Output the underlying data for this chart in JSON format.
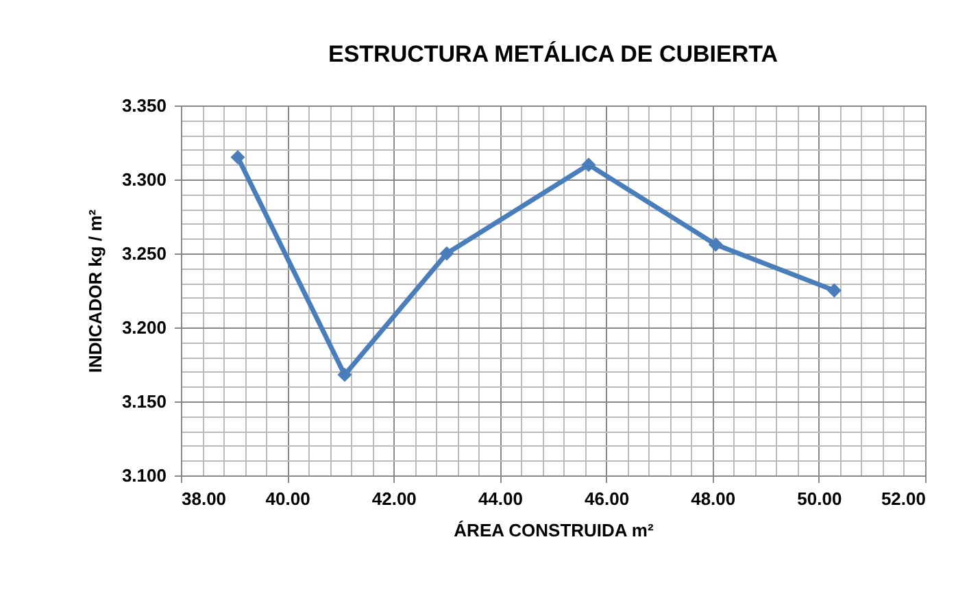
{
  "chart_data": {
    "type": "line",
    "title": "ESTRUCTURA METÁLICA DE CUBIERTA",
    "xlabel": "ÁREA CONSTRUIDA m²",
    "ylabel": "INDICADOR   kg / m²",
    "x": [
      39.07,
      41.08,
      43.0,
      45.67,
      48.06,
      50.29
    ],
    "series": [
      {
        "color": "#4a7ebb",
        "values": [
          3.315,
          3.168,
          3.25,
          3.31,
          3.256,
          3.225
        ]
      }
    ],
    "xlim": [
      38,
      52
    ],
    "xticks": [
      {
        "value": 38,
        "label": "38.00"
      },
      {
        "value": 40,
        "label": "40.00"
      },
      {
        "value": 42,
        "label": "42.00"
      },
      {
        "value": 44,
        "label": "44.00"
      },
      {
        "value": 46,
        "label": "46.00"
      },
      {
        "value": 48,
        "label": "48.00"
      },
      {
        "value": 50,
        "label": "50.00"
      },
      {
        "value": 52,
        "label": "52.00"
      }
    ],
    "ylim": [
      3.1,
      3.35
    ],
    "yticks": [
      {
        "value": 3.1,
        "label": "3.100"
      },
      {
        "value": 3.15,
        "label": "3.150"
      },
      {
        "value": 3.2,
        "label": "3.200"
      },
      {
        "value": 3.25,
        "label": "3.250"
      },
      {
        "value": 3.3,
        "label": "3.300"
      },
      {
        "value": 3.35,
        "label": "3.350"
      }
    ],
    "grid": true,
    "marker": "diamond",
    "line_style": "solid",
    "legend": false
  }
}
